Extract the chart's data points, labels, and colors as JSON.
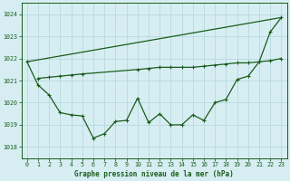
{
  "title": "Graphe pression niveau de la mer (hPa)",
  "background_color": "#d6eef2",
  "grid_color": "#b8d8e0",
  "line_color": "#1a5c1a",
  "xlim": [
    -0.5,
    23.5
  ],
  "ylim": [
    1017.5,
    1024.5
  ],
  "yticks": [
    1018,
    1019,
    1020,
    1021,
    1022,
    1023,
    1024
  ],
  "xticks": [
    0,
    1,
    2,
    3,
    4,
    5,
    6,
    7,
    8,
    9,
    10,
    11,
    12,
    13,
    14,
    15,
    16,
    17,
    18,
    19,
    20,
    21,
    22,
    23
  ],
  "line1_x": [
    0,
    23
  ],
  "line1_y": [
    1021.85,
    1023.85
  ],
  "line2_x": [
    1,
    2,
    3,
    4,
    5,
    10,
    11,
    12,
    13,
    14,
    15,
    16,
    17,
    18,
    19,
    20,
    21,
    22,
    23
  ],
  "line2_y": [
    1021.1,
    1021.15,
    1021.2,
    1021.25,
    1021.3,
    1021.5,
    1021.55,
    1021.6,
    1021.6,
    1021.6,
    1021.6,
    1021.65,
    1021.7,
    1021.75,
    1021.8,
    1021.8,
    1021.85,
    1021.9,
    1022.0
  ],
  "line3_x": [
    0,
    1,
    2,
    3,
    4,
    5,
    6,
    7,
    8,
    9,
    10,
    11,
    12,
    13,
    14,
    15,
    16,
    17,
    18,
    19,
    20,
    21,
    22,
    23
  ],
  "line3_y": [
    1021.85,
    1020.8,
    1020.35,
    1019.55,
    1019.45,
    1019.4,
    1018.4,
    1018.6,
    1019.15,
    1019.2,
    1020.2,
    1019.1,
    1019.5,
    1019.0,
    1019.0,
    1019.45,
    1019.2,
    1020.0,
    1020.15,
    1021.05,
    1021.2,
    1021.85,
    1023.2,
    1023.85
  ],
  "title_fontsize": 5.5,
  "tick_fontsize": 4.8
}
